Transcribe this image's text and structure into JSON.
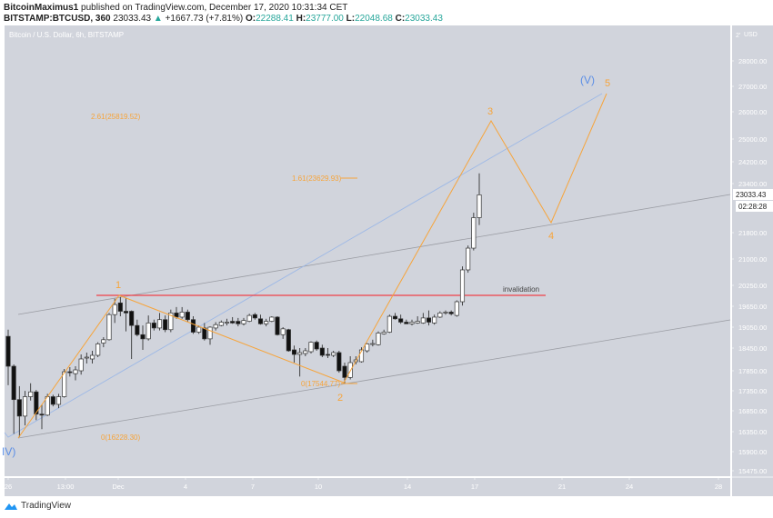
{
  "header": {
    "author": "BitcoinMaximus1",
    "published": "published on TradingView.com, December 17, 2020 10:31:34 CET",
    "symbol": "BITSTAMP:BTCUSD, 360",
    "last": "23033.43",
    "change": "+1667.73 (+7.81%)",
    "o_label": "O:",
    "o": "22288.41",
    "h_label": "H:",
    "h": "23777.00",
    "l_label": "L:",
    "l": "22048.68",
    "c_label": "C:",
    "c": "23033.43"
  },
  "chart_title": "Bitcoin / U.S. Dollar, 6h, BITSTAMP",
  "colors": {
    "bg": "#d1d4dc",
    "axis_text": "#ffffff",
    "orange": "#f7a43a",
    "blue": "#5b8ee6",
    "red": "#f0414a",
    "gray_line": "#9a9ca3"
  },
  "price_axis": {
    "currency": "USD",
    "top_tick": "2'",
    "ticks": [
      "28000.00",
      "27000.00",
      "26000.00",
      "25000.00",
      "24200.00",
      "23400.00",
      "21800.00",
      "21000.00",
      "20250.00",
      "19650.00",
      "19050.00",
      "18450.00",
      "17850.00",
      "17350.00",
      "16850.00",
      "16350.00",
      "15900.00",
      "15475.00"
    ],
    "last_price": "23033.43",
    "countdown": "02:28:28"
  },
  "time_axis": {
    "ticks": [
      "26",
      "13:00",
      "Dec",
      "4",
      "7",
      "10",
      "14",
      "17",
      "21",
      "24",
      "28"
    ]
  },
  "annotations": {
    "wave_1": "1",
    "wave_2": "2",
    "wave_3": "3",
    "wave_4": "4",
    "wave_5": "5",
    "wave_iv": "IV)",
    "wave_v": "(V)",
    "invalidation": "invalidation",
    "fib_261": "2.61(25819.52)",
    "fib_161": "1.61(23629.93)",
    "fib_0_a": "0(17544.77)",
    "fib_0_b": "0(16228.30)"
  },
  "chart_data": {
    "type": "candlestick",
    "title": "Bitcoin / U.S. Dollar, 6h, BITSTAMP",
    "interval": "6h",
    "invalidation_level": 19850,
    "candles_ohlc": [
      [
        18786,
        18978,
        17490,
        17970
      ],
      [
        17970,
        18018,
        16300,
        17130
      ],
      [
        17130,
        17466,
        16228,
        16722
      ],
      [
        16722,
        17346,
        16500,
        17202
      ],
      [
        17202,
        17538,
        17106,
        17322
      ],
      [
        17322,
        17370,
        16626,
        16770
      ],
      [
        16770,
        17010,
        16410,
        16746
      ],
      [
        16746,
        17274,
        16722,
        17202
      ],
      [
        17202,
        17250,
        16960,
        17010
      ],
      [
        17010,
        17274,
        16914,
        17202
      ],
      [
        17202,
        17898,
        17178,
        17826
      ],
      [
        17826,
        17946,
        17706,
        17802
      ],
      [
        17778,
        17970,
        17610,
        17874
      ],
      [
        17850,
        18282,
        17754,
        18162
      ],
      [
        18186,
        18330,
        18042,
        18210
      ],
      [
        18162,
        18378,
        18042,
        18258
      ],
      [
        18258,
        18618,
        18210,
        18570
      ],
      [
        18594,
        18762,
        18474,
        18690
      ],
      [
        18690,
        19458,
        18666,
        19410
      ],
      [
        19410,
        19866,
        19170,
        19698
      ],
      [
        19746,
        19914,
        19362,
        19506
      ],
      [
        19506,
        19890,
        18930,
        19458
      ],
      [
        19506,
        19530,
        18162,
        19098
      ],
      [
        19098,
        19266,
        18786,
        18834
      ],
      [
        18834,
        19098,
        18402,
        18714
      ],
      [
        18714,
        19386,
        18666,
        19170
      ],
      [
        19170,
        19266,
        18954,
        19026
      ],
      [
        19026,
        19458,
        18954,
        19266
      ],
      [
        19266,
        19386,
        18906,
        18978
      ],
      [
        18978,
        19554,
        18906,
        19458
      ],
      [
        19458,
        19626,
        19290,
        19338
      ],
      [
        19338,
        19626,
        19290,
        19482
      ],
      [
        19482,
        19554,
        19194,
        19266
      ],
      [
        19266,
        19362,
        18858,
        18906
      ],
      [
        18906,
        19098,
        18858,
        19050
      ],
      [
        19026,
        19170,
        18666,
        18714
      ],
      [
        18714,
        19074,
        18546,
        19050
      ],
      [
        19026,
        19194,
        18954,
        19122
      ],
      [
        19098,
        19242,
        19074,
        19194
      ],
      [
        19170,
        19290,
        19098,
        19194
      ],
      [
        19218,
        19338,
        19146,
        19170
      ],
      [
        19218,
        19314,
        19074,
        19146
      ],
      [
        19146,
        19314,
        19098,
        19242
      ],
      [
        19218,
        19434,
        19194,
        19386
      ],
      [
        19410,
        19458,
        19266,
        19314
      ],
      [
        19290,
        19410,
        19122,
        19146
      ],
      [
        19146,
        19290,
        19074,
        19218
      ],
      [
        19218,
        19362,
        19194,
        19338
      ],
      [
        19338,
        19362,
        18810,
        18834
      ],
      [
        18834,
        19050,
        18714,
        19002
      ],
      [
        18978,
        19002,
        18354,
        18378
      ],
      [
        18402,
        18522,
        18066,
        18282
      ],
      [
        18282,
        18450,
        17706,
        18330
      ],
      [
        18306,
        18450,
        18234,
        18378
      ],
      [
        18354,
        18642,
        18306,
        18618
      ],
      [
        18618,
        18666,
        18378,
        18426
      ],
      [
        18450,
        18546,
        18210,
        18258
      ],
      [
        18282,
        18450,
        18186,
        18258
      ],
      [
        18258,
        18378,
        18210,
        18330
      ],
      [
        18330,
        18378,
        17802,
        17850
      ],
      [
        17970,
        18066,
        17544,
        17682
      ],
      [
        17682,
        18234,
        17634,
        18066
      ],
      [
        18090,
        18234,
        18018,
        18138
      ],
      [
        18090,
        18474,
        18066,
        18402
      ],
      [
        18378,
        18594,
        18330,
        18570
      ],
      [
        18570,
        18690,
        18498,
        18580
      ],
      [
        18546,
        18930,
        18522,
        18882
      ],
      [
        18858,
        18978,
        18834,
        18906
      ],
      [
        18906,
        19410,
        18882,
        19362
      ],
      [
        19362,
        19458,
        19266,
        19290
      ],
      [
        19290,
        19410,
        19146,
        19194
      ],
      [
        19194,
        19266,
        19146,
        19146
      ],
      [
        19146,
        19266,
        19098,
        19194
      ],
      [
        19170,
        19362,
        19146,
        19218
      ],
      [
        19170,
        19458,
        19146,
        19314
      ],
      [
        19314,
        19530,
        19098,
        19194
      ],
      [
        19170,
        19410,
        19122,
        19338
      ],
      [
        19338,
        19506,
        19314,
        19458
      ],
      [
        19458,
        19530,
        19410,
        19482
      ],
      [
        19482,
        19530,
        19386,
        19434
      ],
      [
        19386,
        19820,
        19350,
        19780
      ],
      [
        19780,
        20790,
        19670,
        20690
      ],
      [
        20690,
        21410,
        20610,
        21330
      ],
      [
        21330,
        22450,
        21260,
        22288
      ],
      [
        22288.41,
        23777.0,
        22048.68,
        23033.43
      ]
    ],
    "elliott_wave_projection": [
      {
        "label": "start",
        "price": 16228
      },
      {
        "label": "1",
        "price": 19850
      },
      {
        "label": "2",
        "price": 17545
      },
      {
        "label": "3",
        "price": 25700
      },
      {
        "label": "4",
        "price": 22000
      },
      {
        "label": "5",
        "price": 26700
      }
    ]
  }
}
